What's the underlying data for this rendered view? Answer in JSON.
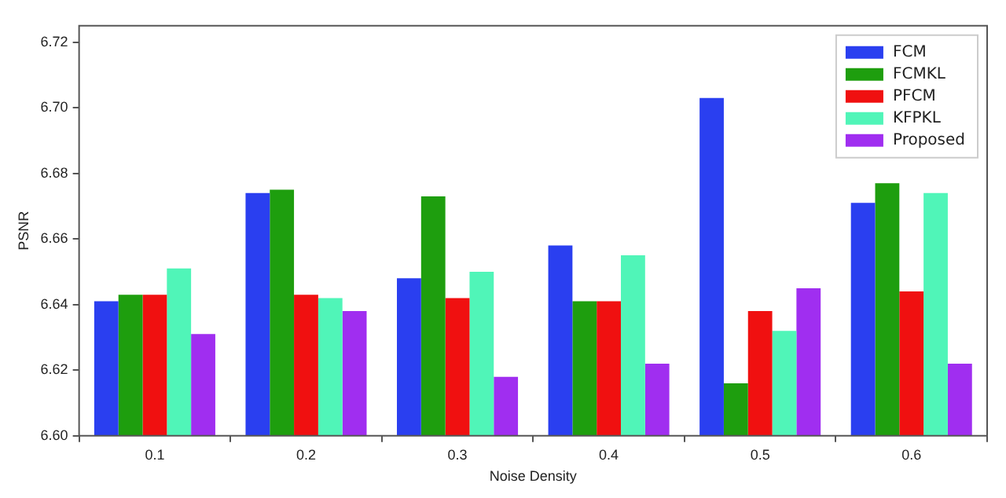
{
  "chart_data": {
    "type": "bar",
    "xlabel": "Noise Density",
    "ylabel": "PSNR",
    "categories": [
      "0.1",
      "0.2",
      "0.3",
      "0.4",
      "0.5",
      "0.6"
    ],
    "series": [
      {
        "name": "FCM",
        "color": "#2a3ff0",
        "values": [
          6.641,
          6.674,
          6.648,
          6.658,
          6.703,
          6.671
        ]
      },
      {
        "name": "FCMKL",
        "color": "#1e9e0e",
        "values": [
          6.643,
          6.675,
          6.673,
          6.641,
          6.616,
          6.677
        ]
      },
      {
        "name": "PFCM",
        "color": "#f01010",
        "values": [
          6.643,
          6.643,
          6.642,
          6.641,
          6.638,
          6.644
        ]
      },
      {
        "name": "KFPKL",
        "color": "#50f5b8",
        "values": [
          6.651,
          6.642,
          6.65,
          6.655,
          6.632,
          6.674
        ]
      },
      {
        "name": "Proposed",
        "color": "#a02ef0",
        "values": [
          6.631,
          6.638,
          6.618,
          6.622,
          6.645,
          6.622
        ]
      }
    ],
    "ylim": [
      6.6,
      6.725
    ],
    "yticks": [
      {
        "value": 6.6,
        "label": "6.60"
      },
      6.62,
      6.64,
      6.66,
      6.68,
      {
        "value": 6.7,
        "label": "6.70"
      },
      6.72
    ],
    "grid": false,
    "legend": "top right"
  }
}
